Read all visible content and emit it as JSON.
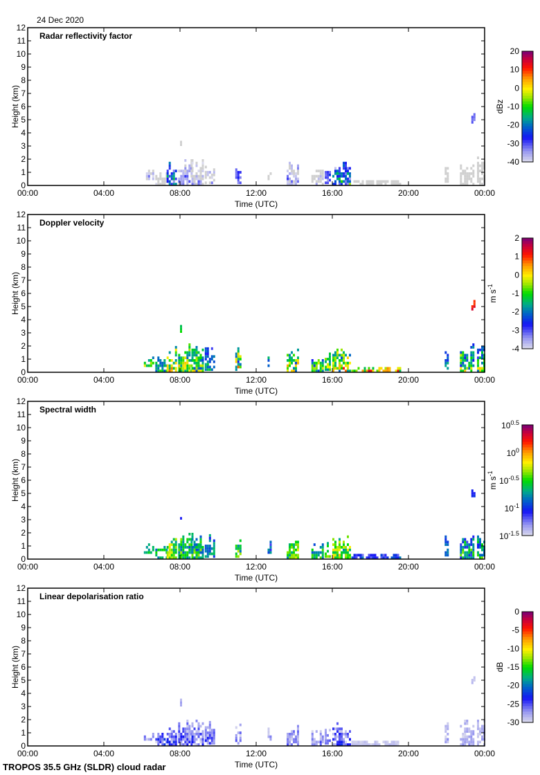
{
  "date": "24 Dec 2020",
  "footer": "TROPOS 35.5 GHz (SLDR) cloud radar",
  "chart_data": [
    {
      "type": "heatmap",
      "title": "Radar reflectivity factor",
      "xlabel": "Time (UTC)",
      "ylabel": "Height (km)",
      "xlim": [
        0,
        24
      ],
      "ylim": [
        0,
        12
      ],
      "xticks": [
        "00:00",
        "04:00",
        "08:00",
        "12:00",
        "16:00",
        "20:00",
        "00:00"
      ],
      "yticks": [
        "0",
        "1",
        "2",
        "3",
        "4",
        "5",
        "6",
        "7",
        "8",
        "9",
        "10",
        "11",
        "12"
      ],
      "colorbar": {
        "label": "dBz",
        "range": [
          -40,
          20
        ],
        "ticks": [
          "20",
          "10",
          "0",
          "-10",
          "-20",
          "-30",
          "-40"
        ],
        "below_range_color": "#d0d0d0"
      },
      "var": "z"
    },
    {
      "type": "heatmap",
      "title": "Doppler velocity",
      "xlabel": "Time (UTC)",
      "ylabel": "Height (km)",
      "xlim": [
        0,
        24
      ],
      "ylim": [
        0,
        12
      ],
      "xticks": [
        "00:00",
        "04:00",
        "08:00",
        "12:00",
        "16:00",
        "20:00",
        "00:00"
      ],
      "yticks": [
        "0",
        "1",
        "2",
        "3",
        "4",
        "5",
        "6",
        "7",
        "8",
        "9",
        "10",
        "11",
        "12"
      ],
      "colorbar": {
        "label": "m s",
        "label_sup": "-1",
        "range": [
          -4,
          2
        ],
        "ticks": [
          "2",
          "1",
          "0",
          "-1",
          "-2",
          "-3",
          "-4"
        ]
      },
      "var": "v"
    },
    {
      "type": "heatmap",
      "title": "Spectral width",
      "xlabel": "Time (UTC)",
      "ylabel": "Height (km)",
      "xlim": [
        0,
        24
      ],
      "ylim": [
        0,
        12
      ],
      "xticks": [
        "00:00",
        "04:00",
        "08:00",
        "12:00",
        "16:00",
        "20:00",
        "00:00"
      ],
      "yticks": [
        "0",
        "1",
        "2",
        "3",
        "4",
        "5",
        "6",
        "7",
        "8",
        "9",
        "10",
        "11",
        "12"
      ],
      "colorbar": {
        "label": "m s",
        "label_sup": "-1",
        "scale": "log10",
        "range": [
          -1.5,
          0.5
        ],
        "ticks": [
          {
            "base": "10",
            "exp": "0.5"
          },
          {
            "base": "10",
            "exp": "0"
          },
          {
            "base": "10",
            "exp": "-0.5"
          },
          {
            "base": "10",
            "exp": "-1"
          },
          {
            "base": "10",
            "exp": "-1.5"
          }
        ]
      },
      "var": "sw"
    },
    {
      "type": "heatmap",
      "title": "Linear depolarisation ratio",
      "xlabel": "Time (UTC)",
      "ylabel": "Height (km)",
      "xlim": [
        0,
        24
      ],
      "ylim": [
        0,
        12
      ],
      "xticks": [
        "00:00",
        "04:00",
        "08:00",
        "12:00",
        "16:00",
        "20:00",
        "00:00"
      ],
      "yticks": [
        "0",
        "1",
        "2",
        "3",
        "4",
        "5",
        "6",
        "7",
        "8",
        "9",
        "10",
        "11",
        "12"
      ],
      "colorbar": {
        "label": "dB",
        "range": [
          -30,
          0
        ],
        "ticks": [
          "0",
          "-5",
          "-10",
          "-15",
          "-20",
          "-25",
          "-30"
        ]
      },
      "var": "ldr"
    }
  ],
  "features": [
    {
      "t": [
        6.1,
        6.6
      ],
      "base": 0.4,
      "top": 1.1,
      "z": [
        -48,
        -30
      ],
      "v": [
        -2,
        0
      ],
      "sw": [
        -1.0,
        -0.4
      ],
      "ldr": [
        -30,
        -24
      ]
    },
    {
      "t": [
        6.7,
        7.3
      ],
      "base": 0.0,
      "top": 1.1,
      "z": [
        -50,
        -35
      ],
      "v": [
        -2.5,
        -0.5
      ],
      "sw": [
        -0.9,
        -0.3
      ],
      "ldr": [
        -30,
        -20
      ]
    },
    {
      "t": [
        7.3,
        7.8
      ],
      "base": 0.0,
      "top": 1.9,
      "z": [
        -38,
        -5
      ],
      "v": [
        -2,
        1.2
      ],
      "sw": [
        -0.8,
        0.0
      ],
      "ldr": [
        -30,
        -22
      ]
    },
    {
      "t": [
        7.9,
        8.6
      ],
      "base": 0.0,
      "top": 2.1,
      "z": [
        -48,
        -25
      ],
      "v": [
        -2.5,
        0.8
      ],
      "sw": [
        -1.0,
        -0.1
      ],
      "ldr": [
        -30,
        -22
      ]
    },
    {
      "t": [
        8.0,
        8.1
      ],
      "base": 3.0,
      "top": 3.7,
      "z": [
        -50,
        -42
      ],
      "v": [
        -1.5,
        -0.5
      ],
      "sw": [
        -1.2,
        -0.9
      ],
      "ldr": [
        -30,
        -26
      ]
    },
    {
      "t": [
        8.6,
        9.2
      ],
      "base": 0.0,
      "top": 2.0,
      "z": [
        -50,
        -30
      ],
      "v": [
        -2.5,
        0.3
      ],
      "sw": [
        -1.0,
        -0.2
      ],
      "ldr": [
        -30,
        -22
      ]
    },
    {
      "t": [
        9.3,
        9.8
      ],
      "base": 0.1,
      "top": 1.9,
      "z": [
        -50,
        -30
      ],
      "v": [
        -3,
        -1
      ],
      "sw": [
        -1.1,
        -0.4
      ],
      "ldr": [
        -30,
        -23
      ]
    },
    {
      "t": [
        10.9,
        11.15
      ],
      "base": 0.1,
      "top": 1.8,
      "z": [
        -35,
        -25
      ],
      "v": [
        -3,
        1.5
      ],
      "sw": [
        -1.0,
        -0.2
      ],
      "ldr": [
        -30,
        -24
      ]
    },
    {
      "t": [
        12.6,
        12.8
      ],
      "base": 0.4,
      "top": 1.4,
      "z": [
        -50,
        -38
      ],
      "v": [
        -2.5,
        -0.5
      ],
      "sw": [
        -1.2,
        -0.6
      ],
      "ldr": [
        -30,
        -25
      ]
    },
    {
      "t": [
        13.6,
        14.2
      ],
      "base": 0.0,
      "top": 1.7,
      "z": [
        -45,
        -28
      ],
      "v": [
        -2.5,
        1.0
      ],
      "sw": [
        -0.9,
        -0.1
      ],
      "ldr": [
        -30,
        -24
      ]
    },
    {
      "t": [
        14.9,
        15.5
      ],
      "base": 0.0,
      "top": 1.2,
      "z": [
        -50,
        -32
      ],
      "v": [
        -3,
        0.5
      ],
      "sw": [
        -1.0,
        -0.3
      ],
      "ldr": [
        -30,
        -24
      ]
    },
    {
      "t": [
        15.6,
        15.9
      ],
      "base": 0.1,
      "top": 1.5,
      "z": [
        -40,
        -20
      ],
      "v": [
        -2,
        0.5
      ],
      "sw": [
        -0.9,
        -0.2
      ],
      "ldr": [
        -30,
        -24
      ]
    },
    {
      "t": [
        16.0,
        16.9
      ],
      "base": 0.0,
      "top": 1.8,
      "z": [
        -40,
        -5
      ],
      "v": [
        -2.5,
        1.3
      ],
      "sw": [
        -0.8,
        0.0
      ],
      "ldr": [
        -30,
        -22
      ]
    },
    {
      "t": [
        17.0,
        19.6
      ],
      "base": 0.0,
      "top": 0.4,
      "z": [
        -55,
        -45
      ],
      "v": [
        -2,
        1.5
      ],
      "sw": [
        -1.3,
        -0.8
      ],
      "ldr": [
        -30,
        -28
      ]
    },
    {
      "t": [
        21.9,
        22.05
      ],
      "base": 0.2,
      "top": 1.9,
      "z": [
        -55,
        -45
      ],
      "v": [
        -3,
        -1
      ],
      "sw": [
        -1.2,
        -0.6
      ],
      "ldr": [
        -30,
        -26
      ]
    },
    {
      "t": [
        22.7,
        23.4
      ],
      "base": 0.0,
      "top": 2.1,
      "z": [
        -55,
        -45
      ],
      "v": [
        -3,
        0.5
      ],
      "sw": [
        -1.2,
        -0.3
      ],
      "ldr": [
        -30,
        -26
      ]
    },
    {
      "t": [
        23.3,
        23.45
      ],
      "base": 4.7,
      "top": 5.5,
      "z": [
        -35,
        -28
      ],
      "v": [
        0.5,
        1.8
      ],
      "sw": [
        -1.1,
        -0.9
      ],
      "ldr": [
        -30,
        -28
      ]
    },
    {
      "t": [
        23.6,
        24.0
      ],
      "base": 0.0,
      "top": 2.1,
      "z": [
        -55,
        -40
      ],
      "v": [
        -3,
        0.5
      ],
      "sw": [
        -1.2,
        -0.3
      ],
      "ldr": [
        -30,
        -26
      ]
    }
  ]
}
